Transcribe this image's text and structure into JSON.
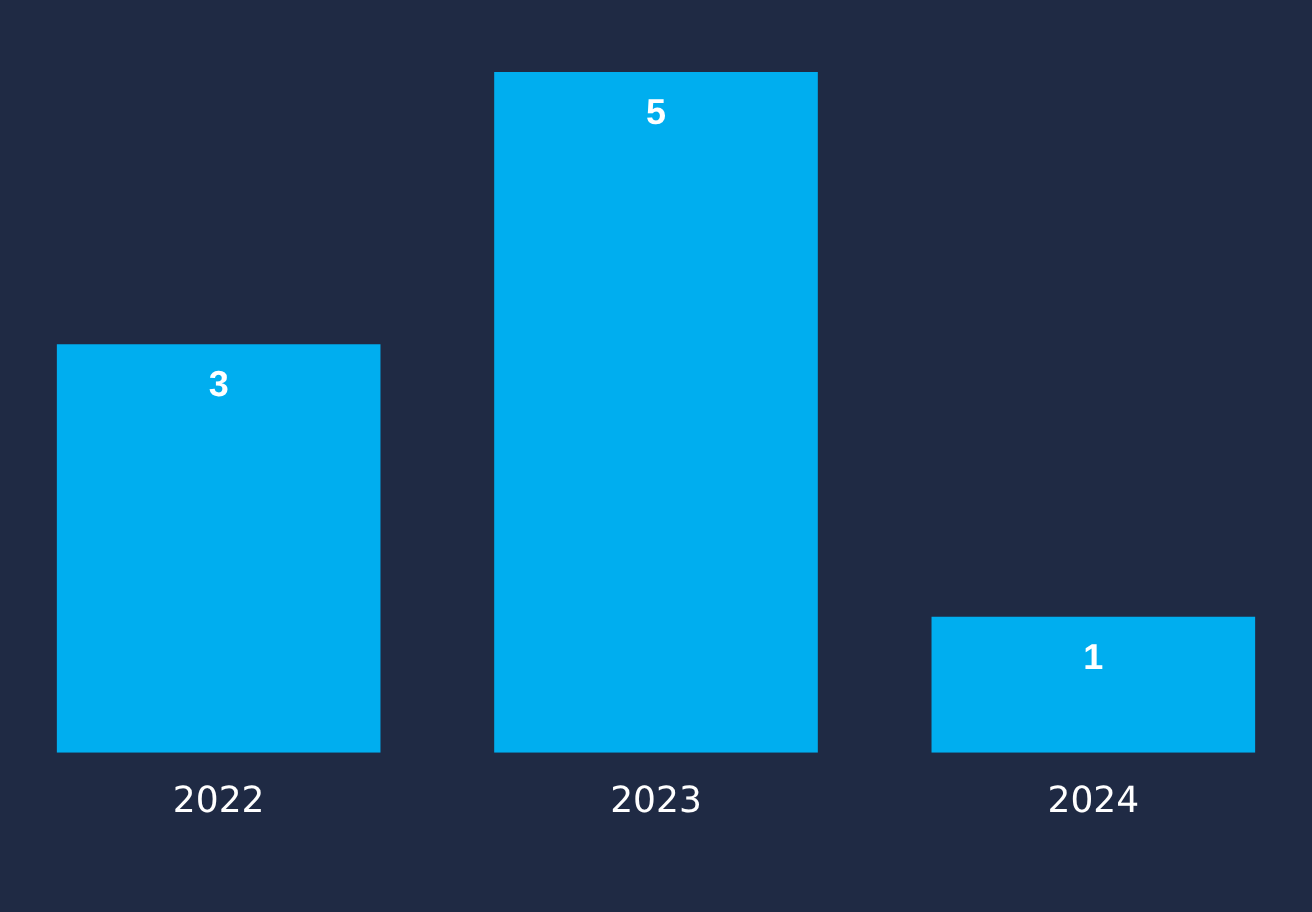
{
  "chart_data": {
    "type": "bar",
    "categories": [
      "2022",
      "2023",
      "2024"
    ],
    "values": [
      3,
      5,
      1
    ],
    "color": "#00aeef",
    "data_labels": true,
    "grid": false,
    "legend": false
  }
}
